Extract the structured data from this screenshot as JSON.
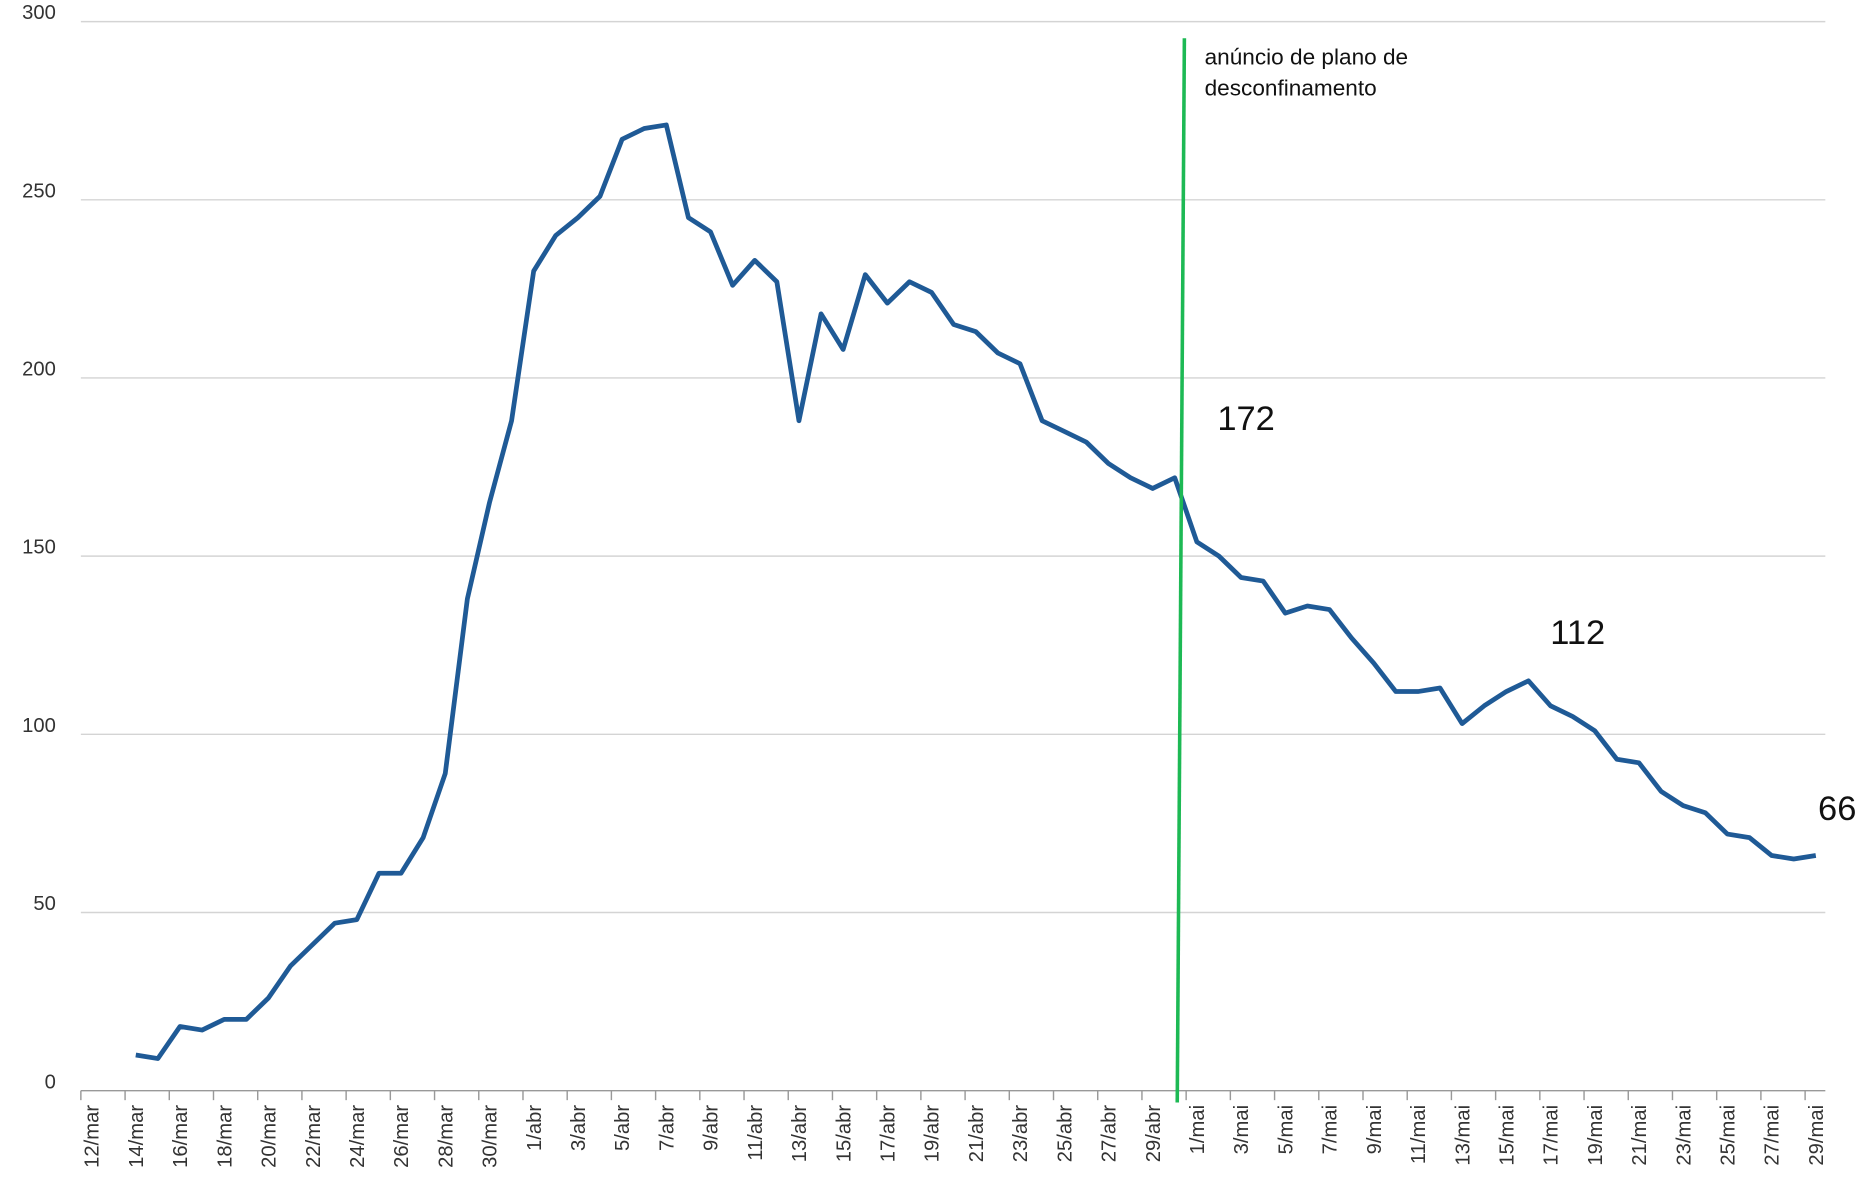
{
  "chart_data": {
    "type": "line",
    "categories": [
      "12/mar",
      null,
      "14/mar",
      null,
      "16/mar",
      null,
      "18/mar",
      null,
      "20/mar",
      null,
      "22/mar",
      null,
      "24/mar",
      null,
      "26/mar",
      null,
      "28/mar",
      null,
      "30/mar",
      null,
      "1/abr",
      null,
      "3/abr",
      null,
      "5/abr",
      null,
      "7/abr",
      null,
      "9/abr",
      null,
      "11/abr",
      null,
      "13/abr",
      null,
      "15/abr",
      null,
      "17/abr",
      null,
      "19/abr",
      null,
      "21/abr",
      null,
      "23/abr",
      null,
      "25/abr",
      null,
      "27/abr",
      null,
      "29/abr",
      null,
      "1/mai",
      null,
      "3/mai",
      null,
      "5/mai",
      null,
      "7/mai",
      null,
      "9/mai",
      null,
      "11/mai",
      null,
      "13/mai",
      null,
      "15/mai",
      null,
      "17/mai",
      null,
      "19/mai",
      null,
      "21/mai",
      null,
      "23/mai",
      null,
      "25/mai",
      null,
      "27/mai",
      null,
      "29/mai"
    ],
    "series": [
      {
        "color": "#1f5a96",
        "values": [
          null,
          null,
          10,
          9,
          18,
          17,
          20,
          20,
          26,
          35,
          41,
          47,
          48,
          61,
          61,
          71,
          89,
          138,
          165,
          188,
          230,
          240,
          245,
          251,
          267,
          270,
          271,
          245,
          241,
          226,
          233,
          227,
          188,
          218,
          208,
          229,
          221,
          227,
          224,
          215,
          213,
          207,
          204,
          188,
          185,
          182,
          176,
          172,
          169,
          172,
          154,
          150,
          144,
          143,
          134,
          136,
          135,
          127,
          120,
          112,
          112,
          113,
          103,
          108,
          112,
          115,
          108,
          105,
          101,
          93,
          92,
          84,
          80,
          78,
          72,
          71,
          66,
          65,
          66
        ],
        "value_labels": [
          null,
          null,
          null,
          null,
          null,
          null,
          null,
          null,
          null,
          null,
          null,
          null,
          null,
          null,
          null,
          null,
          null,
          null,
          null,
          null,
          null,
          null,
          null,
          null,
          null,
          null,
          null,
          null,
          null,
          null,
          null,
          null,
          null,
          null,
          null,
          null,
          null,
          null,
          null,
          null,
          null,
          null,
          null,
          null,
          null,
          null,
          null,
          null,
          null,
          "172",
          null,
          null,
          null,
          null,
          null,
          null,
          null,
          null,
          null,
          null,
          null,
          null,
          null,
          null,
          "112",
          null,
          null,
          null,
          null,
          null,
          null,
          null,
          null,
          null,
          null,
          null,
          null,
          null,
          "66"
        ]
      }
    ],
    "ylim": [
      0,
      300
    ],
    "yticks": [
      0,
      50,
      100,
      150,
      200,
      250,
      300
    ],
    "grid": true,
    "annotation": "anúncio de plano de desconfinamento",
    "annotation_color": "#1db954"
  }
}
